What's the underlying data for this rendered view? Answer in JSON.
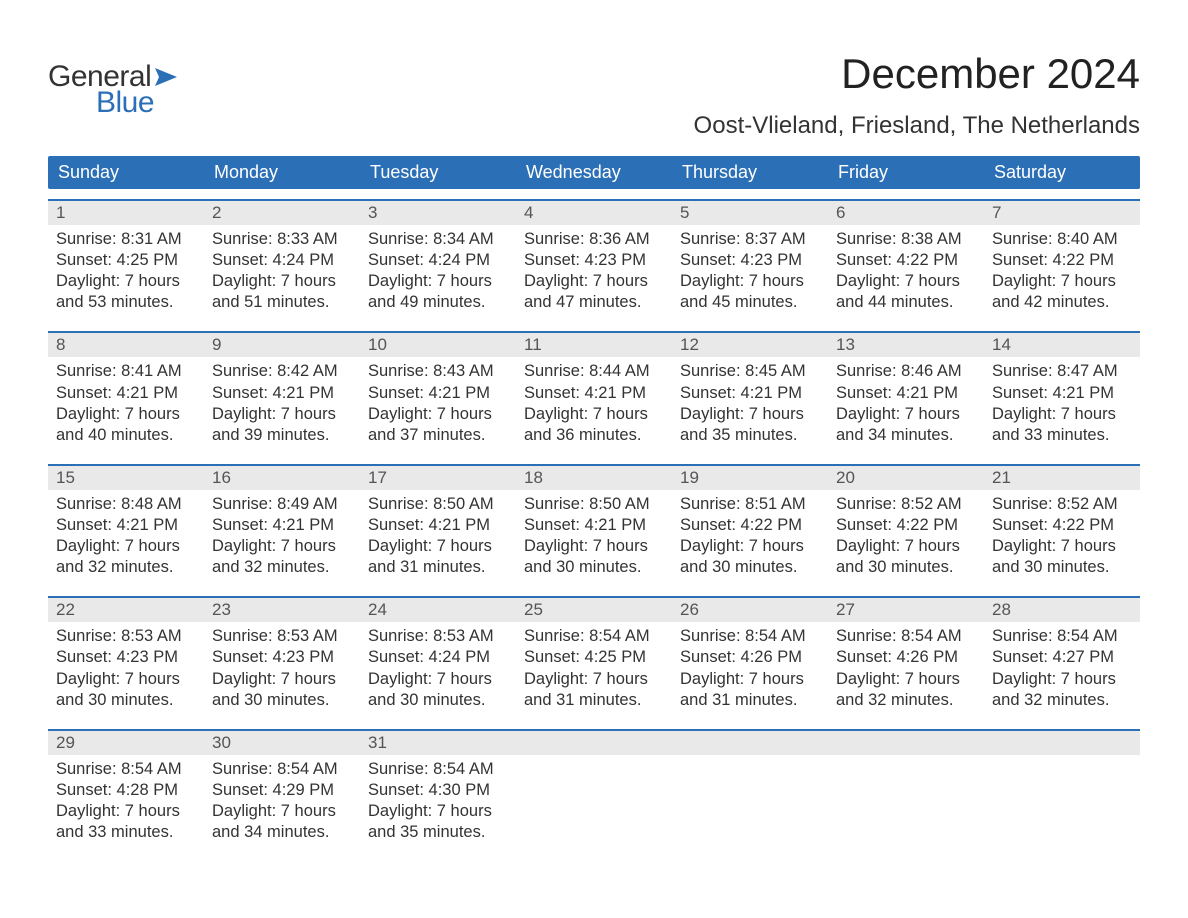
{
  "logo": {
    "general": "General",
    "blue": "Blue",
    "flag_color": "#2b6fb6"
  },
  "title": "December 2024",
  "location": "Oost-Vlieland, Friesland, The Netherlands",
  "colors": {
    "header_bg": "#2b6fb6",
    "header_text": "#ffffff",
    "date_strip_bg": "#e9e9e9",
    "date_strip_border": "#2b6fb6",
    "body_text": "#333333",
    "date_text": "#555555",
    "page_bg": "#ffffff"
  },
  "day_headers": [
    "Sunday",
    "Monday",
    "Tuesday",
    "Wednesday",
    "Thursday",
    "Friday",
    "Saturday"
  ],
  "weeks": [
    {
      "days": [
        {
          "date": "1",
          "sunrise": "Sunrise: 8:31 AM",
          "sunset": "Sunset: 4:25 PM",
          "daylight1": "Daylight: 7 hours",
          "daylight2": "and 53 minutes."
        },
        {
          "date": "2",
          "sunrise": "Sunrise: 8:33 AM",
          "sunset": "Sunset: 4:24 PM",
          "daylight1": "Daylight: 7 hours",
          "daylight2": "and 51 minutes."
        },
        {
          "date": "3",
          "sunrise": "Sunrise: 8:34 AM",
          "sunset": "Sunset: 4:24 PM",
          "daylight1": "Daylight: 7 hours",
          "daylight2": "and 49 minutes."
        },
        {
          "date": "4",
          "sunrise": "Sunrise: 8:36 AM",
          "sunset": "Sunset: 4:23 PM",
          "daylight1": "Daylight: 7 hours",
          "daylight2": "and 47 minutes."
        },
        {
          "date": "5",
          "sunrise": "Sunrise: 8:37 AM",
          "sunset": "Sunset: 4:23 PM",
          "daylight1": "Daylight: 7 hours",
          "daylight2": "and 45 minutes."
        },
        {
          "date": "6",
          "sunrise": "Sunrise: 8:38 AM",
          "sunset": "Sunset: 4:22 PM",
          "daylight1": "Daylight: 7 hours",
          "daylight2": "and 44 minutes."
        },
        {
          "date": "7",
          "sunrise": "Sunrise: 8:40 AM",
          "sunset": "Sunset: 4:22 PM",
          "daylight1": "Daylight: 7 hours",
          "daylight2": "and 42 minutes."
        }
      ]
    },
    {
      "days": [
        {
          "date": "8",
          "sunrise": "Sunrise: 8:41 AM",
          "sunset": "Sunset: 4:21 PM",
          "daylight1": "Daylight: 7 hours",
          "daylight2": "and 40 minutes."
        },
        {
          "date": "9",
          "sunrise": "Sunrise: 8:42 AM",
          "sunset": "Sunset: 4:21 PM",
          "daylight1": "Daylight: 7 hours",
          "daylight2": "and 39 minutes."
        },
        {
          "date": "10",
          "sunrise": "Sunrise: 8:43 AM",
          "sunset": "Sunset: 4:21 PM",
          "daylight1": "Daylight: 7 hours",
          "daylight2": "and 37 minutes."
        },
        {
          "date": "11",
          "sunrise": "Sunrise: 8:44 AM",
          "sunset": "Sunset: 4:21 PM",
          "daylight1": "Daylight: 7 hours",
          "daylight2": "and 36 minutes."
        },
        {
          "date": "12",
          "sunrise": "Sunrise: 8:45 AM",
          "sunset": "Sunset: 4:21 PM",
          "daylight1": "Daylight: 7 hours",
          "daylight2": "and 35 minutes."
        },
        {
          "date": "13",
          "sunrise": "Sunrise: 8:46 AM",
          "sunset": "Sunset: 4:21 PM",
          "daylight1": "Daylight: 7 hours",
          "daylight2": "and 34 minutes."
        },
        {
          "date": "14",
          "sunrise": "Sunrise: 8:47 AM",
          "sunset": "Sunset: 4:21 PM",
          "daylight1": "Daylight: 7 hours",
          "daylight2": "and 33 minutes."
        }
      ]
    },
    {
      "days": [
        {
          "date": "15",
          "sunrise": "Sunrise: 8:48 AM",
          "sunset": "Sunset: 4:21 PM",
          "daylight1": "Daylight: 7 hours",
          "daylight2": "and 32 minutes."
        },
        {
          "date": "16",
          "sunrise": "Sunrise: 8:49 AM",
          "sunset": "Sunset: 4:21 PM",
          "daylight1": "Daylight: 7 hours",
          "daylight2": "and 32 minutes."
        },
        {
          "date": "17",
          "sunrise": "Sunrise: 8:50 AM",
          "sunset": "Sunset: 4:21 PM",
          "daylight1": "Daylight: 7 hours",
          "daylight2": "and 31 minutes."
        },
        {
          "date": "18",
          "sunrise": "Sunrise: 8:50 AM",
          "sunset": "Sunset: 4:21 PM",
          "daylight1": "Daylight: 7 hours",
          "daylight2": "and 30 minutes."
        },
        {
          "date": "19",
          "sunrise": "Sunrise: 8:51 AM",
          "sunset": "Sunset: 4:22 PM",
          "daylight1": "Daylight: 7 hours",
          "daylight2": "and 30 minutes."
        },
        {
          "date": "20",
          "sunrise": "Sunrise: 8:52 AM",
          "sunset": "Sunset: 4:22 PM",
          "daylight1": "Daylight: 7 hours",
          "daylight2": "and 30 minutes."
        },
        {
          "date": "21",
          "sunrise": "Sunrise: 8:52 AM",
          "sunset": "Sunset: 4:22 PM",
          "daylight1": "Daylight: 7 hours",
          "daylight2": "and 30 minutes."
        }
      ]
    },
    {
      "days": [
        {
          "date": "22",
          "sunrise": "Sunrise: 8:53 AM",
          "sunset": "Sunset: 4:23 PM",
          "daylight1": "Daylight: 7 hours",
          "daylight2": "and 30 minutes."
        },
        {
          "date": "23",
          "sunrise": "Sunrise: 8:53 AM",
          "sunset": "Sunset: 4:23 PM",
          "daylight1": "Daylight: 7 hours",
          "daylight2": "and 30 minutes."
        },
        {
          "date": "24",
          "sunrise": "Sunrise: 8:53 AM",
          "sunset": "Sunset: 4:24 PM",
          "daylight1": "Daylight: 7 hours",
          "daylight2": "and 30 minutes."
        },
        {
          "date": "25",
          "sunrise": "Sunrise: 8:54 AM",
          "sunset": "Sunset: 4:25 PM",
          "daylight1": "Daylight: 7 hours",
          "daylight2": "and 31 minutes."
        },
        {
          "date": "26",
          "sunrise": "Sunrise: 8:54 AM",
          "sunset": "Sunset: 4:26 PM",
          "daylight1": "Daylight: 7 hours",
          "daylight2": "and 31 minutes."
        },
        {
          "date": "27",
          "sunrise": "Sunrise: 8:54 AM",
          "sunset": "Sunset: 4:26 PM",
          "daylight1": "Daylight: 7 hours",
          "daylight2": "and 32 minutes."
        },
        {
          "date": "28",
          "sunrise": "Sunrise: 8:54 AM",
          "sunset": "Sunset: 4:27 PM",
          "daylight1": "Daylight: 7 hours",
          "daylight2": "and 32 minutes."
        }
      ]
    },
    {
      "days": [
        {
          "date": "29",
          "sunrise": "Sunrise: 8:54 AM",
          "sunset": "Sunset: 4:28 PM",
          "daylight1": "Daylight: 7 hours",
          "daylight2": "and 33 minutes."
        },
        {
          "date": "30",
          "sunrise": "Sunrise: 8:54 AM",
          "sunset": "Sunset: 4:29 PM",
          "daylight1": "Daylight: 7 hours",
          "daylight2": "and 34 minutes."
        },
        {
          "date": "31",
          "sunrise": "Sunrise: 8:54 AM",
          "sunset": "Sunset: 4:30 PM",
          "daylight1": "Daylight: 7 hours",
          "daylight2": "and 35 minutes."
        },
        {
          "date": "",
          "sunrise": "",
          "sunset": "",
          "daylight1": "",
          "daylight2": ""
        },
        {
          "date": "",
          "sunrise": "",
          "sunset": "",
          "daylight1": "",
          "daylight2": ""
        },
        {
          "date": "",
          "sunrise": "",
          "sunset": "",
          "daylight1": "",
          "daylight2": ""
        },
        {
          "date": "",
          "sunrise": "",
          "sunset": "",
          "daylight1": "",
          "daylight2": ""
        }
      ]
    }
  ]
}
